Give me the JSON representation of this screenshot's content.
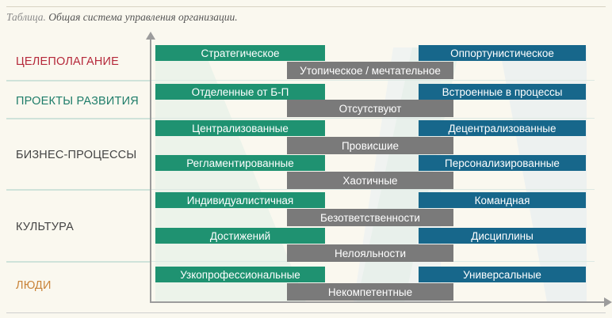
{
  "caption": {
    "lead": "Таблица.",
    "text": " Общая система управления организации."
  },
  "colors": {
    "green_bar": "#1f9271",
    "blue_bar": "#17678b",
    "grey_bar": "#7a7a7a",
    "cat_goal": "#b5283a",
    "cat_projects": "#1f7d6a",
    "cat_people": "#c9843a",
    "cat_default": "#444444"
  },
  "categories": {
    "goal": "ЦЕЛЕПОЛАГАНИЕ",
    "projects": "ПРОЕКТЫ РАЗВИТИЯ",
    "processes": "БИЗНЕС-ПРОЦЕССЫ",
    "culture": "КУЛЬТУРА",
    "people": "ЛЮДИ"
  },
  "bars": {
    "goal_left": "Стратегическое",
    "goal_right": "Оппортунистическое",
    "goal_mid": "Утопическое / мечтательное",
    "projects_left": "Отделенные от Б-П",
    "projects_right": "Встроенные в процессы",
    "projects_mid": "Отсутствуют",
    "proc1_left": "Централизованные",
    "proc1_right": "Децентрализованные",
    "proc1_mid": "Провисшие",
    "proc2_left": "Регламентированные",
    "proc2_right": "Персонализированные",
    "proc2_mid": "Хаотичные",
    "cult1_left": "Индивидуалистичная",
    "cult1_right": "Командная",
    "cult1_mid": "Безответственности",
    "cult2_left": "Достижений",
    "cult2_right": "Дисциплины",
    "cult2_mid": "Нелояльности",
    "people_left": "Узкопрофессиональные",
    "people_right": "Универсальные",
    "people_mid": "Некомпетентные"
  }
}
